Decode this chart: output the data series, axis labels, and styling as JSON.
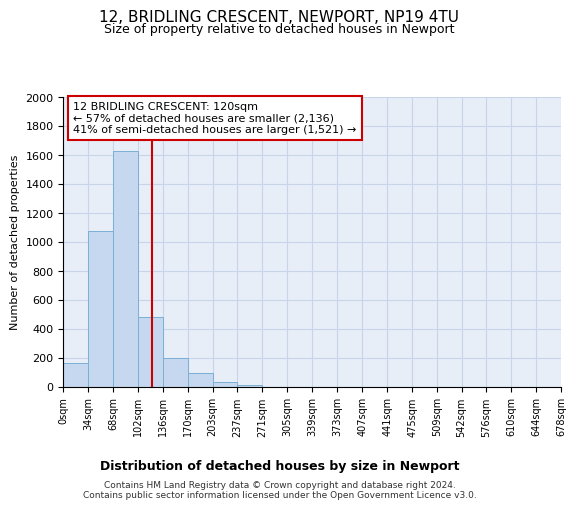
{
  "title1": "12, BRIDLING CRESCENT, NEWPORT, NP19 4TU",
  "title2": "Size of property relative to detached houses in Newport",
  "xlabel": "Distribution of detached houses by size in Newport",
  "ylabel": "Number of detached properties",
  "footnote1": "Contains HM Land Registry data © Crown copyright and database right 2024.",
  "footnote2": "Contains public sector information licensed under the Open Government Licence v3.0.",
  "annotation_line1": "12 BRIDLING CRESCENT: 120sqm",
  "annotation_line2": "← 57% of detached houses are smaller (2,136)",
  "annotation_line3": "41% of semi-detached houses are larger (1,521) →",
  "bar_values": [
    165,
    1075,
    1630,
    480,
    200,
    100,
    35,
    15,
    0,
    0,
    0,
    0,
    0,
    0,
    0,
    0,
    0,
    0,
    0,
    0
  ],
  "bin_edges": [
    0,
    34,
    68,
    102,
    136,
    170,
    203,
    237,
    271,
    305,
    339,
    373,
    407,
    441,
    475,
    509,
    542,
    576,
    610,
    644,
    678
  ],
  "tick_labels": [
    "0sqm",
    "34sqm",
    "68sqm",
    "102sqm",
    "136sqm",
    "170sqm",
    "203sqm",
    "237sqm",
    "271sqm",
    "305sqm",
    "339sqm",
    "373sqm",
    "407sqm",
    "441sqm",
    "475sqm",
    "509sqm",
    "542sqm",
    "576sqm",
    "610sqm",
    "644sqm",
    "678sqm"
  ],
  "property_size": 120,
  "bar_color": "#c5d8f0",
  "bar_edge_color": "#7aafd4",
  "vline_color": "#cc0000",
  "annotation_box_edge": "#cc0000",
  "ylim": [
    0,
    2000
  ],
  "yticks": [
    0,
    200,
    400,
    600,
    800,
    1000,
    1200,
    1400,
    1600,
    1800,
    2000
  ],
  "grid_color": "#c8d4e8",
  "background_color": "#e8eef8",
  "fig_background": "#ffffff",
  "title1_fontsize": 11,
  "title2_fontsize": 9,
  "xlabel_fontsize": 9,
  "ylabel_fontsize": 8,
  "tick_fontsize": 7,
  "ytick_fontsize": 8,
  "footnote_fontsize": 6.5,
  "annotation_fontsize": 8
}
